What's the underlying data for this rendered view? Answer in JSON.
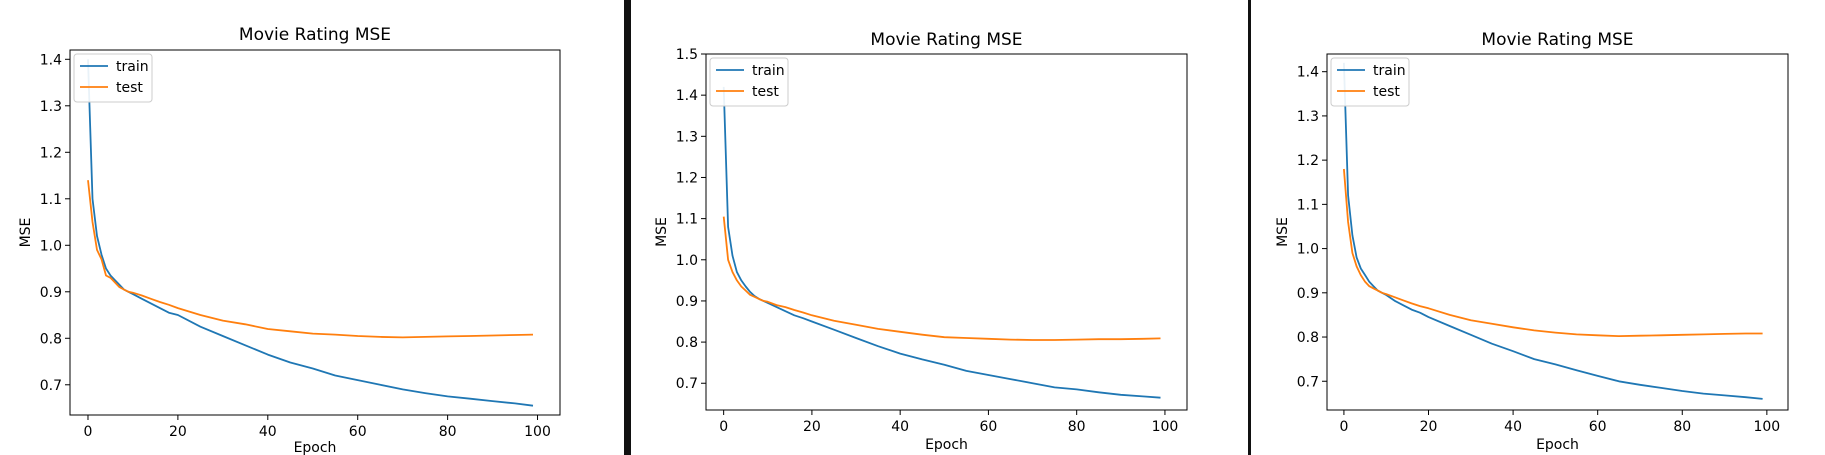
{
  "colors": {
    "train": "#1f77b4",
    "test": "#ff7f0e"
  },
  "chart_data": [
    {
      "type": "line",
      "title": "Movie Rating MSE",
      "xlabel": "Epoch",
      "ylabel": "MSE",
      "xlim": [
        -4,
        105
      ],
      "ylim": [
        0.635,
        1.42
      ],
      "xticks": [
        0,
        20,
        40,
        60,
        80,
        100
      ],
      "yticks": [
        0.7,
        0.8,
        0.9,
        1.0,
        1.1,
        1.2,
        1.3,
        1.4
      ],
      "legend": "upper left",
      "grid": false,
      "series": [
        {
          "name": "train",
          "x": [
            0,
            1,
            2,
            3,
            4,
            5,
            6,
            7,
            8,
            9,
            10,
            12,
            14,
            16,
            18,
            20,
            25,
            30,
            35,
            40,
            45,
            50,
            55,
            60,
            65,
            70,
            75,
            80,
            85,
            90,
            95,
            99
          ],
          "y": [
            1.4,
            1.1,
            1.02,
            0.98,
            0.95,
            0.935,
            0.925,
            0.915,
            0.905,
            0.9,
            0.895,
            0.885,
            0.875,
            0.865,
            0.855,
            0.85,
            0.825,
            0.805,
            0.785,
            0.765,
            0.748,
            0.735,
            0.72,
            0.71,
            0.7,
            0.69,
            0.682,
            0.675,
            0.67,
            0.665,
            0.66,
            0.655
          ]
        },
        {
          "name": "test",
          "x": [
            0,
            1,
            2,
            3,
            4,
            5,
            6,
            7,
            8,
            9,
            10,
            12,
            14,
            16,
            18,
            20,
            25,
            30,
            35,
            40,
            45,
            50,
            55,
            60,
            65,
            70,
            75,
            80,
            85,
            90,
            95,
            99
          ],
          "y": [
            1.14,
            1.05,
            0.99,
            0.97,
            0.935,
            0.93,
            0.92,
            0.91,
            0.905,
            0.9,
            0.898,
            0.892,
            0.885,
            0.878,
            0.872,
            0.865,
            0.85,
            0.838,
            0.83,
            0.82,
            0.815,
            0.81,
            0.808,
            0.805,
            0.803,
            0.802,
            0.803,
            0.804,
            0.805,
            0.806,
            0.807,
            0.808
          ]
        }
      ]
    },
    {
      "type": "line",
      "title": "Movie Rating MSE",
      "xlabel": "Epoch",
      "ylabel": "MSE",
      "xlim": [
        -4,
        105
      ],
      "ylim": [
        0.635,
        1.5
      ],
      "xticks": [
        0,
        20,
        40,
        60,
        80,
        100
      ],
      "yticks": [
        0.7,
        0.8,
        0.9,
        1.0,
        1.1,
        1.2,
        1.3,
        1.4,
        1.5
      ],
      "legend": "upper left",
      "grid": false,
      "series": [
        {
          "name": "train",
          "x": [
            0,
            1,
            2,
            3,
            4,
            5,
            6,
            7,
            8,
            9,
            10,
            12,
            14,
            16,
            18,
            20,
            25,
            30,
            35,
            40,
            45,
            50,
            55,
            60,
            65,
            70,
            75,
            80,
            85,
            90,
            95,
            99
          ],
          "y": [
            1.42,
            1.08,
            1.01,
            0.97,
            0.95,
            0.935,
            0.922,
            0.912,
            0.905,
            0.9,
            0.895,
            0.885,
            0.875,
            0.865,
            0.858,
            0.85,
            0.83,
            0.81,
            0.79,
            0.772,
            0.758,
            0.745,
            0.73,
            0.72,
            0.71,
            0.7,
            0.69,
            0.685,
            0.678,
            0.672,
            0.668,
            0.665
          ]
        },
        {
          "name": "test",
          "x": [
            0,
            1,
            2,
            3,
            4,
            5,
            6,
            7,
            8,
            9,
            10,
            12,
            14,
            16,
            18,
            20,
            25,
            30,
            35,
            40,
            45,
            50,
            55,
            60,
            65,
            70,
            75,
            80,
            85,
            90,
            95,
            99
          ],
          "y": [
            1.105,
            1.0,
            0.97,
            0.95,
            0.935,
            0.925,
            0.915,
            0.91,
            0.905,
            0.9,
            0.898,
            0.89,
            0.885,
            0.878,
            0.872,
            0.865,
            0.852,
            0.842,
            0.832,
            0.825,
            0.818,
            0.812,
            0.81,
            0.808,
            0.806,
            0.805,
            0.805,
            0.806,
            0.807,
            0.807,
            0.808,
            0.809
          ]
        }
      ]
    },
    {
      "type": "line",
      "title": "Movie Rating MSE",
      "xlabel": "Epoch",
      "ylabel": "MSE",
      "xlim": [
        -4,
        105
      ],
      "ylim": [
        0.635,
        1.44
      ],
      "xticks": [
        0,
        20,
        40,
        60,
        80,
        100
      ],
      "yticks": [
        0.7,
        0.8,
        0.9,
        1.0,
        1.1,
        1.2,
        1.3,
        1.4
      ],
      "legend": "upper left",
      "grid": false,
      "series": [
        {
          "name": "train",
          "x": [
            0,
            1,
            2,
            3,
            4,
            5,
            6,
            7,
            8,
            9,
            10,
            12,
            14,
            16,
            18,
            20,
            25,
            30,
            35,
            40,
            45,
            50,
            55,
            60,
            65,
            70,
            75,
            80,
            85,
            90,
            95,
            99
          ],
          "y": [
            1.42,
            1.12,
            1.03,
            0.98,
            0.955,
            0.94,
            0.925,
            0.915,
            0.905,
            0.9,
            0.895,
            0.882,
            0.872,
            0.862,
            0.855,
            0.845,
            0.825,
            0.805,
            0.785,
            0.768,
            0.75,
            0.738,
            0.725,
            0.712,
            0.7,
            0.692,
            0.685,
            0.678,
            0.672,
            0.668,
            0.664,
            0.66
          ]
        },
        {
          "name": "test",
          "x": [
            0,
            1,
            2,
            3,
            4,
            5,
            6,
            7,
            8,
            9,
            10,
            12,
            14,
            16,
            18,
            20,
            25,
            30,
            35,
            40,
            45,
            50,
            55,
            60,
            65,
            70,
            75,
            80,
            85,
            90,
            95,
            99
          ],
          "y": [
            1.18,
            1.06,
            0.99,
            0.96,
            0.94,
            0.925,
            0.915,
            0.91,
            0.905,
            0.9,
            0.897,
            0.89,
            0.883,
            0.876,
            0.87,
            0.865,
            0.85,
            0.838,
            0.83,
            0.822,
            0.815,
            0.81,
            0.806,
            0.804,
            0.802,
            0.803,
            0.804,
            0.805,
            0.806,
            0.807,
            0.808,
            0.808
          ]
        }
      ]
    }
  ]
}
